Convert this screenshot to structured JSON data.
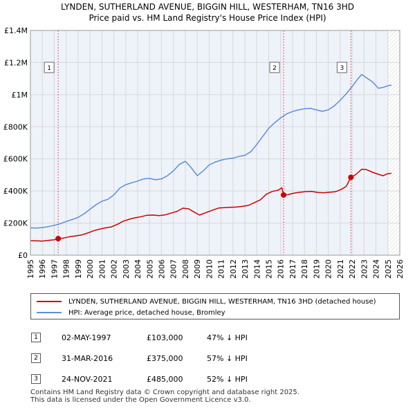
{
  "title_line1": "LYNDEN, SUTHERLAND AVENUE, BIGGIN HILL, WESTERHAM, TN16 3HD",
  "title_line2": "Price paid vs. HM Land Registry's House Price Index (HPI)",
  "colors": {
    "property": "#cc0000",
    "hpi": "#5b8fd4",
    "grid": "#d8d8d8",
    "plot_bg": "#eef2f9",
    "future_hatch": "#d0d0d0"
  },
  "chart_data": {
    "type": "line",
    "title": "LYNDEN, SUTHERLAND AVENUE, BIGGIN HILL, WESTERHAM, TN16 3HD",
    "subtitle": "Price paid vs. HM Land Registry's House Price Index (HPI)",
    "xlabel": "",
    "ylabel": "",
    "xlim": [
      1995,
      2026
    ],
    "ylim": [
      0,
      1400000
    ],
    "x_ticks": [
      1995,
      1996,
      1997,
      1998,
      1999,
      2000,
      2001,
      2002,
      2003,
      2004,
      2005,
      2006,
      2007,
      2008,
      2009,
      2010,
      2011,
      2012,
      2013,
      2014,
      2015,
      2016,
      2017,
      2018,
      2019,
      2020,
      2021,
      2022,
      2023,
      2024,
      2025,
      2026
    ],
    "y_ticks": [
      0,
      200000,
      400000,
      600000,
      800000,
      1000000,
      1200000,
      1400000
    ],
    "y_tick_labels": [
      "£0",
      "£200K",
      "£400K",
      "£600K",
      "£800K",
      "£1M",
      "£1.2M",
      "£1.4M"
    ],
    "future_from": 2025.0,
    "series": [
      {
        "name": "LYNDEN, SUTHERLAND AVENUE, BIGGIN HILL, WESTERHAM, TN16 3HD (detached house)",
        "color": "#cc0000",
        "points": [
          [
            1995.0,
            90000
          ],
          [
            1995.5,
            89000
          ],
          [
            1996.0,
            88000
          ],
          [
            1996.5,
            92000
          ],
          [
            1997.0,
            96000
          ],
          [
            1997.33,
            103000
          ],
          [
            1997.8,
            107000
          ],
          [
            1998.3,
            115000
          ],
          [
            1998.8,
            120000
          ],
          [
            1999.3,
            126000
          ],
          [
            1999.8,
            138000
          ],
          [
            2000.3,
            152000
          ],
          [
            2000.8,
            162000
          ],
          [
            2001.3,
            170000
          ],
          [
            2001.8,
            176000
          ],
          [
            2002.3,
            192000
          ],
          [
            2002.8,
            212000
          ],
          [
            2003.3,
            224000
          ],
          [
            2003.8,
            233000
          ],
          [
            2004.3,
            240000
          ],
          [
            2004.8,
            249000
          ],
          [
            2005.3,
            250000
          ],
          [
            2005.8,
            247000
          ],
          [
            2006.3,
            251000
          ],
          [
            2006.8,
            262000
          ],
          [
            2007.3,
            273000
          ],
          [
            2007.8,
            293000
          ],
          [
            2008.3,
            288000
          ],
          [
            2008.8,
            266000
          ],
          [
            2009.2,
            250000
          ],
          [
            2009.7,
            264000
          ],
          [
            2010.3,
            281000
          ],
          [
            2010.8,
            294000
          ],
          [
            2011.3,
            296000
          ],
          [
            2011.8,
            298000
          ],
          [
            2012.3,
            300000
          ],
          [
            2012.8,
            304000
          ],
          [
            2013.3,
            310000
          ],
          [
            2013.8,
            327000
          ],
          [
            2014.3,
            345000
          ],
          [
            2014.8,
            380000
          ],
          [
            2015.3,
            397000
          ],
          [
            2015.8,
            405000
          ],
          [
            2016.1,
            420000
          ],
          [
            2016.25,
            375000
          ],
          [
            2016.6,
            377000
          ],
          [
            2017.1,
            386000
          ],
          [
            2017.6,
            392000
          ],
          [
            2018.1,
            396000
          ],
          [
            2018.6,
            397000
          ],
          [
            2019.1,
            391000
          ],
          [
            2019.6,
            389000
          ],
          [
            2020.1,
            392000
          ],
          [
            2020.6,
            395000
          ],
          [
            2021.1,
            410000
          ],
          [
            2021.5,
            428000
          ],
          [
            2021.9,
            485000
          ],
          [
            2022.3,
            502000
          ],
          [
            2022.8,
            535000
          ],
          [
            2023.2,
            533000
          ],
          [
            2023.7,
            517000
          ],
          [
            2024.2,
            504000
          ],
          [
            2024.6,
            495000
          ],
          [
            2025.0,
            508000
          ],
          [
            2025.3,
            510000
          ]
        ]
      },
      {
        "name": "HPI: Average price, detached house, Bromley",
        "color": "#5b8fd4",
        "points": [
          [
            1995.0,
            170000
          ],
          [
            1995.5,
            169000
          ],
          [
            1996.0,
            172000
          ],
          [
            1996.5,
            178000
          ],
          [
            1997.0,
            186000
          ],
          [
            1997.5,
            196000
          ],
          [
            1998.0,
            210000
          ],
          [
            1998.5,
            222000
          ],
          [
            1999.0,
            235000
          ],
          [
            1999.5,
            258000
          ],
          [
            2000.0,
            286000
          ],
          [
            2000.5,
            314000
          ],
          [
            2001.0,
            336000
          ],
          [
            2001.5,
            348000
          ],
          [
            2002.0,
            375000
          ],
          [
            2002.5,
            418000
          ],
          [
            2003.0,
            439000
          ],
          [
            2003.5,
            451000
          ],
          [
            2004.0,
            462000
          ],
          [
            2004.5,
            475000
          ],
          [
            2005.0,
            478000
          ],
          [
            2005.5,
            470000
          ],
          [
            2006.0,
            475000
          ],
          [
            2006.5,
            495000
          ],
          [
            2007.0,
            525000
          ],
          [
            2007.5,
            565000
          ],
          [
            2008.0,
            585000
          ],
          [
            2008.5,
            545000
          ],
          [
            2009.0,
            495000
          ],
          [
            2009.5,
            525000
          ],
          [
            2010.0,
            562000
          ],
          [
            2010.5,
            580000
          ],
          [
            2011.0,
            592000
          ],
          [
            2011.5,
            600000
          ],
          [
            2012.0,
            604000
          ],
          [
            2012.5,
            615000
          ],
          [
            2013.0,
            622000
          ],
          [
            2013.5,
            645000
          ],
          [
            2014.0,
            690000
          ],
          [
            2014.5,
            740000
          ],
          [
            2015.0,
            790000
          ],
          [
            2015.5,
            825000
          ],
          [
            2016.0,
            855000
          ],
          [
            2016.5,
            880000
          ],
          [
            2017.0,
            895000
          ],
          [
            2017.5,
            905000
          ],
          [
            2018.0,
            912000
          ],
          [
            2018.5,
            915000
          ],
          [
            2019.0,
            905000
          ],
          [
            2019.5,
            896000
          ],
          [
            2020.0,
            905000
          ],
          [
            2020.5,
            930000
          ],
          [
            2021.0,
            965000
          ],
          [
            2021.5,
            1005000
          ],
          [
            2022.0,
            1050000
          ],
          [
            2022.5,
            1100000
          ],
          [
            2022.8,
            1125000
          ],
          [
            2023.2,
            1105000
          ],
          [
            2023.7,
            1080000
          ],
          [
            2024.2,
            1040000
          ],
          [
            2024.6,
            1045000
          ],
          [
            2025.0,
            1055000
          ],
          [
            2025.3,
            1060000
          ]
        ]
      }
    ],
    "sales": [
      {
        "label": "1",
        "x": 1997.33,
        "price": 103000
      },
      {
        "label": "2",
        "x": 2016.25,
        "price": 375000
      },
      {
        "label": "3",
        "x": 2021.9,
        "price": 485000
      }
    ]
  },
  "legend": {
    "property_label": "LYNDEN, SUTHERLAND AVENUE, BIGGIN HILL, WESTERHAM, TN16 3HD (detached house)",
    "hpi_label": "HPI: Average price, detached house, Bromley"
  },
  "sales_table": [
    {
      "num": "1",
      "date": "02-MAY-1997",
      "price": "£103,000",
      "hpi": "47% ↓ HPI"
    },
    {
      "num": "2",
      "date": "31-MAR-2016",
      "price": "£375,000",
      "hpi": "57% ↓ HPI"
    },
    {
      "num": "3",
      "date": "24-NOV-2021",
      "price": "£485,000",
      "hpi": "52% ↓ HPI"
    }
  ],
  "footer": {
    "line1": "Contains HM Land Registry data © Crown copyright and database right 2025.",
    "line2": "This data is licensed under the Open Government Licence v3.0."
  }
}
